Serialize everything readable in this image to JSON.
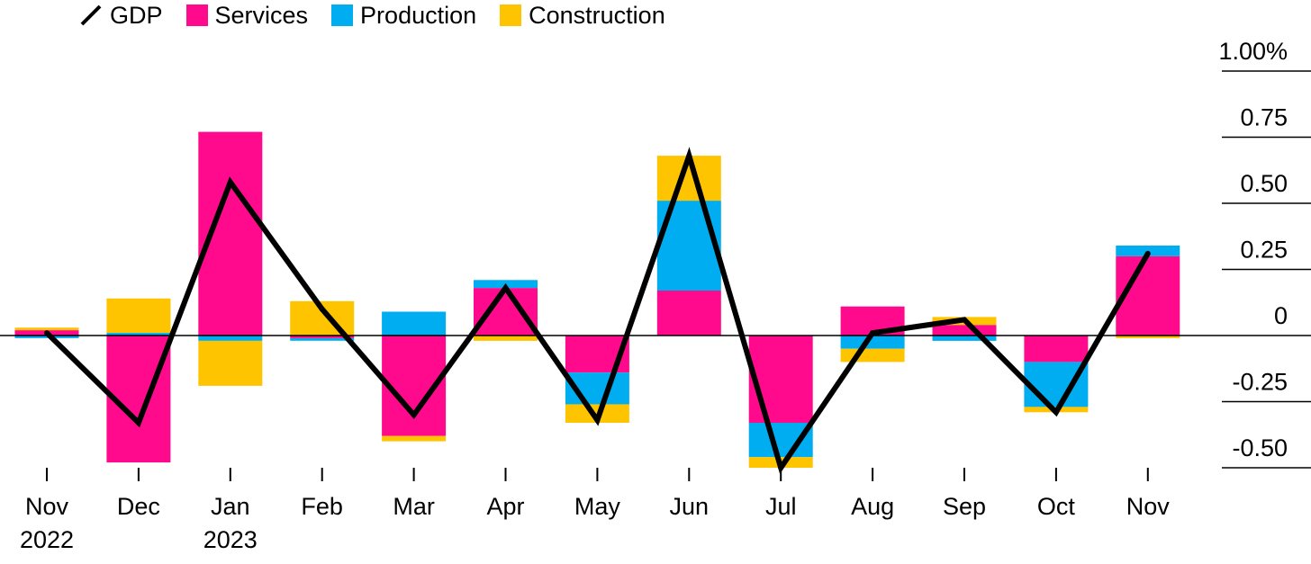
{
  "chart_data": {
    "type": "bar",
    "stacked": true,
    "legend_position": "top-left",
    "colors": {
      "GDP": "#000000",
      "Services": "#ff0a8c",
      "Production": "#00adf0",
      "Construction": "#ffc400"
    },
    "categories": [
      [
        "Nov",
        "2022"
      ],
      [
        "Dec",
        ""
      ],
      [
        "Jan",
        "2023"
      ],
      [
        "Feb",
        ""
      ],
      [
        "Mar",
        ""
      ],
      [
        "Apr",
        ""
      ],
      [
        "May",
        ""
      ],
      [
        "Jun",
        ""
      ],
      [
        "Jul",
        ""
      ],
      [
        "Aug",
        ""
      ],
      [
        "Sep",
        ""
      ],
      [
        "Oct",
        ""
      ],
      [
        "Nov",
        ""
      ]
    ],
    "series": [
      {
        "name": "Services",
        "kind": "bar",
        "values": [
          0.02,
          -0.48,
          0.77,
          -0.01,
          -0.38,
          0.18,
          -0.14,
          0.17,
          -0.33,
          0.11,
          0.04,
          -0.1,
          0.3
        ]
      },
      {
        "name": "Production",
        "kind": "bar",
        "values": [
          -0.01,
          0.01,
          -0.02,
          -0.01,
          0.09,
          0.03,
          -0.12,
          0.34,
          -0.13,
          -0.05,
          -0.02,
          -0.17,
          0.04
        ]
      },
      {
        "name": "Construction",
        "kind": "bar",
        "values": [
          0.01,
          0.13,
          -0.17,
          0.13,
          -0.02,
          -0.02,
          -0.07,
          0.17,
          -0.04,
          -0.05,
          0.03,
          -0.02,
          -0.01
        ]
      },
      {
        "name": "GDP",
        "kind": "line",
        "values": [
          0.01,
          -0.33,
          0.58,
          0.1,
          -0.3,
          0.18,
          -0.32,
          0.68,
          -0.5,
          0.01,
          0.06,
          -0.29,
          0.31
        ]
      }
    ],
    "y_ticks": [
      {
        "value": 1.0,
        "label": "1.00%"
      },
      {
        "value": 0.75,
        "label": "0.75"
      },
      {
        "value": 0.5,
        "label": "0.50"
      },
      {
        "value": 0.25,
        "label": "0.25"
      },
      {
        "value": 0,
        "label": "0"
      },
      {
        "value": -0.25,
        "label": "-0.25"
      },
      {
        "value": -0.5,
        "label": "-0.50"
      }
    ],
    "ylim": [
      -0.5,
      1.0
    ],
    "y_axis_side": "right",
    "grid": false
  }
}
